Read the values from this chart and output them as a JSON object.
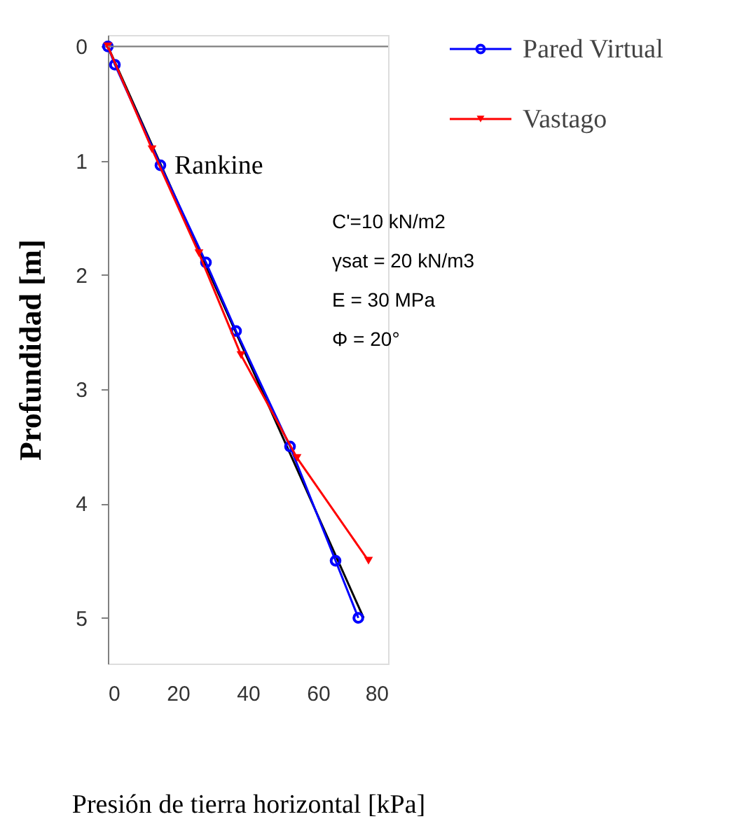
{
  "chart_data": {
    "type": "line",
    "xlabel": "Presión de tierra horizontal [kPa]",
    "ylabel": "Profundidad [m]",
    "xlim": [
      0,
      80
    ],
    "xticks": [
      0,
      20,
      40,
      60,
      80
    ],
    "ylim": [
      5.4,
      -0.1
    ],
    "yticks": [
      0,
      1,
      2,
      3,
      4,
      5
    ],
    "grid": false,
    "legend": "top right",
    "series": [
      {
        "type": "line",
        "color": "#000000",
        "marker": "none",
        "line_style": "solid",
        "x": [
          0,
          73
        ],
        "values": [
          0,
          5.0
        ]
      },
      {
        "name": "Pared Virtual",
        "color": "#0000ff",
        "marker": "circle",
        "line_style": "solid",
        "x": [
          0,
          2,
          15,
          28,
          36.6,
          52,
          65,
          71.5
        ],
        "values": [
          0,
          0.16,
          1.04,
          1.89,
          2.49,
          3.5,
          4.5,
          5.0
        ]
      },
      {
        "name": "Vastago",
        "color": "#ff0000",
        "marker": "triangle",
        "line_style": "solid",
        "x": [
          0,
          12.6,
          26,
          38,
          54,
          74.4
        ],
        "values": [
          0,
          0.9,
          1.81,
          2.7,
          3.6,
          4.5
        ]
      }
    ],
    "ref_lines": [
      {
        "axis": "y",
        "value": 0,
        "color": "#808080"
      }
    ],
    "annotations": [
      {
        "text": "Rankine",
        "x": 15,
        "y": 1.04
      },
      "C'=10 kN/m2",
      "γsat = 20 kN/m3",
      "E = 30 MPa",
      "Φ = 20°"
    ]
  }
}
